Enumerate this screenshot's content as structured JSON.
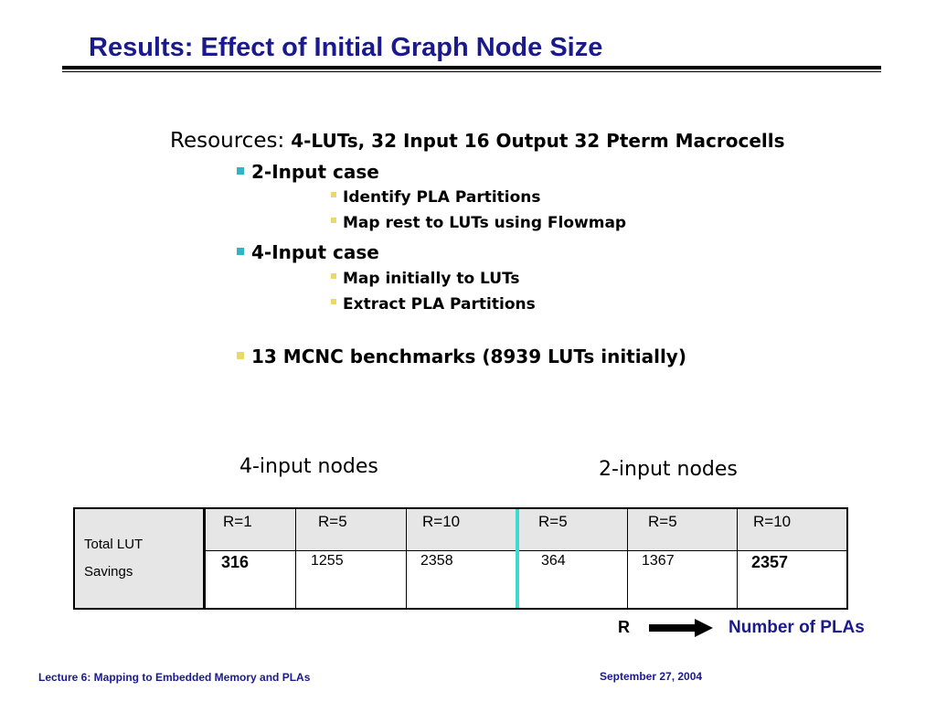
{
  "slide": {
    "title": "Results: Effect of Initial Graph Node Size",
    "resources_label": "Resources:",
    "resources_value": "4-LUTs, 32 Input 16 Output 32 Pterm Macrocells",
    "bullets": [
      {
        "text": "2-Input case",
        "color": "#2fb5c8",
        "sub": [
          "Identify PLA Partitions",
          "Map rest to LUTs using Flowmap"
        ]
      },
      {
        "text": "4-Input case",
        "color": "#2fb5c8",
        "sub": [
          "Map initially to LUTs",
          "Extract PLA Partitions"
        ]
      },
      {
        "text": "13 MCNC benchmarks (8939 LUTs initially)",
        "color": "#e8d96b",
        "sub": []
      }
    ],
    "group_labels": {
      "left": "4-input nodes",
      "right": "2-input nodes"
    },
    "table": {
      "row_label_line1": "Total LUT",
      "row_label_line2": "Savings",
      "headers": [
        "R=1",
        "R=5",
        "R=10",
        "R=5",
        "R=5",
        "R=10"
      ],
      "values": [
        "316",
        "1255",
        "2358",
        "364",
        "1367",
        "2357"
      ]
    },
    "legend": {
      "r": "R",
      "arrow_icon": "right-arrow-icon",
      "label": "Number of PLAs"
    },
    "footer": {
      "left": "Lecture 6: Mapping to Embedded Memory and PLAs",
      "right": "September 27, 2004"
    },
    "colors": {
      "title": "#1a1a8c",
      "teal": "#2fb5c8",
      "yellow": "#e8d96b",
      "table_header_bg": "#e6e6e6",
      "divider": "#3fd9cf"
    }
  }
}
